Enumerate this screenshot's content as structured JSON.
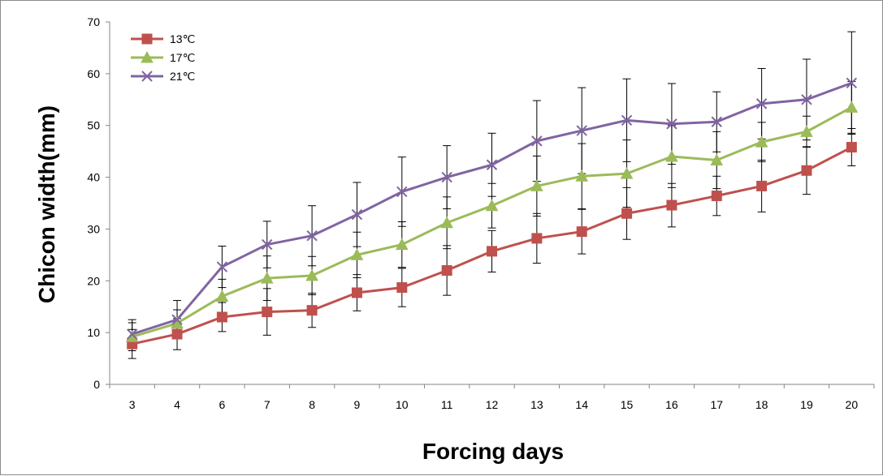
{
  "chart_data": {
    "type": "line",
    "xlabel": "Forcing days",
    "ylabel": "Chicon width(mm)",
    "ylim": [
      0,
      70
    ],
    "yticks": [
      0,
      10,
      20,
      30,
      40,
      50,
      60,
      70
    ],
    "categories": [
      "3",
      "4",
      "6",
      "7",
      "8",
      "9",
      "10",
      "11",
      "12",
      "13",
      "14",
      "15",
      "16",
      "17",
      "18",
      "19",
      "20"
    ],
    "legend_position": "top-left",
    "grid": false,
    "error_bars": true,
    "series": [
      {
        "name": "13℃",
        "color": "#c0504d",
        "marker": "square",
        "values": [
          7.8,
          9.7,
          13.0,
          14.0,
          14.3,
          17.7,
          18.7,
          22.0,
          25.7,
          28.2,
          29.5,
          33.0,
          34.6,
          36.4,
          38.3,
          41.3,
          45.8
        ],
        "errors": [
          2.8,
          3.0,
          2.8,
          4.5,
          3.3,
          3.5,
          3.7,
          4.8,
          4.0,
          4.8,
          4.3,
          5.0,
          4.2,
          3.8,
          5.0,
          4.6,
          3.6
        ]
      },
      {
        "name": "17℃",
        "color": "#9bbb59",
        "marker": "triangle",
        "values": [
          9.2,
          11.8,
          17.0,
          20.5,
          21.0,
          25.0,
          27.0,
          31.2,
          34.5,
          38.3,
          40.2,
          40.7,
          44.0,
          43.3,
          46.8,
          48.8,
          53.5
        ],
        "errors": [
          2.7,
          2.6,
          3.3,
          4.3,
          3.7,
          4.4,
          4.4,
          5.0,
          4.3,
          5.8,
          6.3,
          6.5,
          6.0,
          5.5,
          3.8,
          3.0,
          5.0
        ]
      },
      {
        "name": "21℃",
        "color": "#8064a2",
        "marker": "x",
        "values": [
          9.7,
          12.5,
          22.7,
          27.0,
          28.7,
          32.8,
          37.2,
          40.0,
          42.4,
          47.0,
          49.0,
          51.0,
          50.3,
          50.7,
          54.2,
          55.0,
          58.2
        ],
        "errors": [
          2.8,
          3.7,
          4.0,
          4.5,
          5.8,
          6.2,
          6.7,
          6.1,
          6.1,
          7.8,
          8.3,
          8.0,
          7.8,
          5.8,
          6.8,
          7.8,
          9.9
        ]
      }
    ]
  }
}
